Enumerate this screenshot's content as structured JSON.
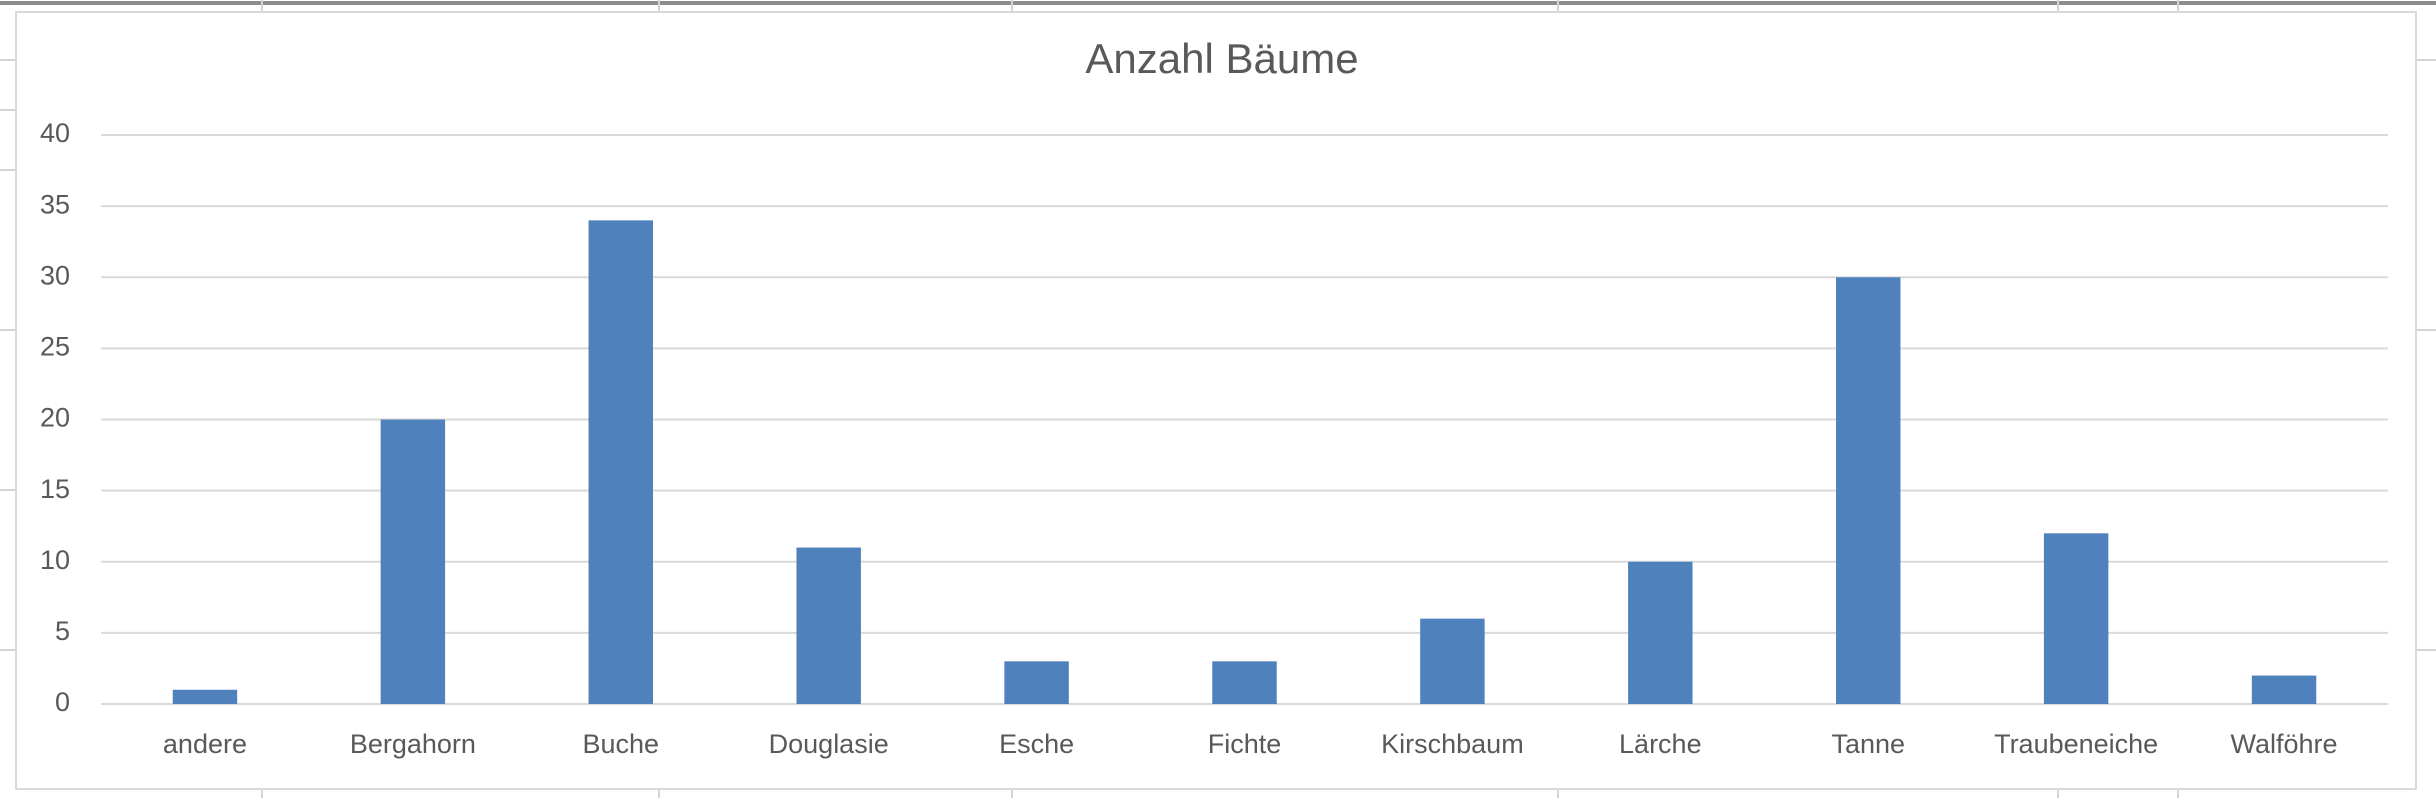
{
  "chart_data": {
    "type": "bar",
    "title": "Anzahl Bäume",
    "categories": [
      "andere",
      "Bergahorn",
      "Buche",
      "Douglasie",
      "Esche",
      "Fichte",
      "Kirschbaum",
      "Lärche",
      "Tanne",
      "Traubeneiche",
      "Walföhre"
    ],
    "values": [
      1,
      20,
      34,
      11,
      3,
      3,
      6,
      10,
      30,
      12,
      2
    ],
    "color": "#4f81bd",
    "ylim": [
      0,
      40
    ],
    "yticks": [
      0,
      5,
      10,
      15,
      20,
      25,
      30,
      35,
      40
    ],
    "grid": true
  }
}
